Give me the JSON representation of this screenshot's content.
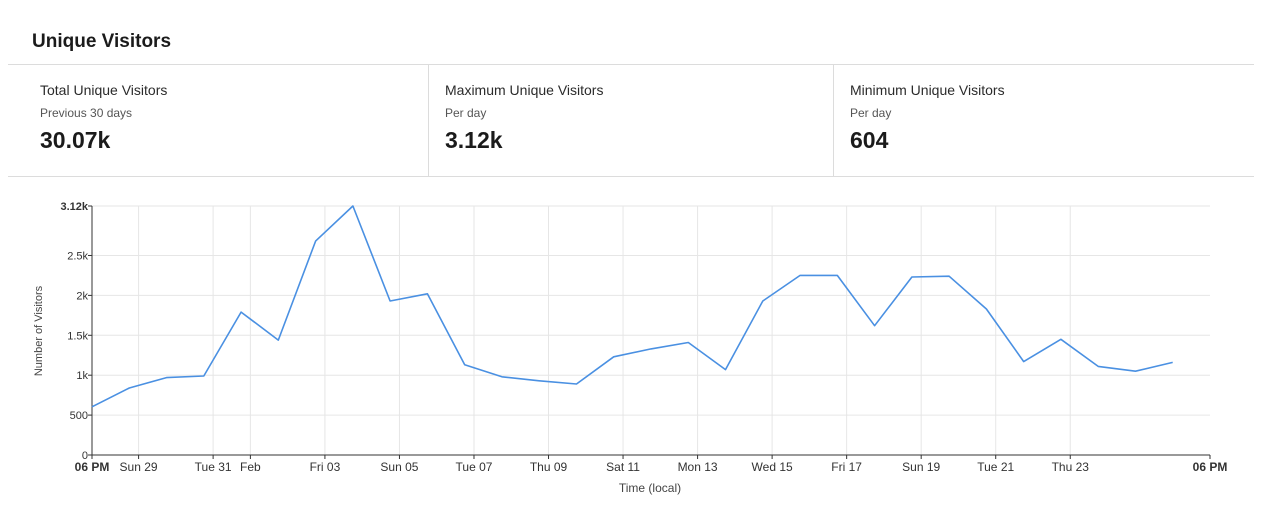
{
  "page": {
    "title": "Unique Visitors"
  },
  "stats": [
    {
      "label": "Total Unique Visitors",
      "sublabel": "Previous 30 days",
      "value": "30.07k"
    },
    {
      "label": "Maximum Unique Visitors",
      "sublabel": "Per day",
      "value": "3.12k"
    },
    {
      "label": "Minimum Unique Visitors",
      "sublabel": "Per day",
      "value": "604"
    }
  ],
  "colors": {
    "line": "#4a90e2",
    "grid": "#e6e6e6",
    "axis": "#333333"
  },
  "chart_data": {
    "type": "line",
    "xlabel": "Time (local)",
    "ylabel": "Number of Visitors",
    "ylim": [
      0,
      3120
    ],
    "grid": true,
    "legend": "none",
    "y_ticks": [
      {
        "value": 0,
        "label": "0"
      },
      {
        "value": 500,
        "label": "500"
      },
      {
        "value": 1000,
        "label": "1k"
      },
      {
        "value": 1500,
        "label": "1.5k"
      },
      {
        "value": 2000,
        "label": "2k"
      },
      {
        "value": 2500,
        "label": "2.5k"
      },
      {
        "value": 3120,
        "label": "3.12k",
        "bold": true
      }
    ],
    "x_range": [
      "2025-12-27T18:00",
      "2026-01-26T18:00"
    ],
    "x_ticks": [
      {
        "x": "2025-12-27T18:00",
        "label": "06 PM",
        "bold": true
      },
      {
        "x": "2025-12-29T00:00",
        "label": "Sun 29"
      },
      {
        "x": "2025-12-31T00:00",
        "label": "Tue 31"
      },
      {
        "x": "2026-01-01T00:00",
        "label": "Feb"
      },
      {
        "x": "2026-01-03T00:00",
        "label": "Fri 03"
      },
      {
        "x": "2026-01-05T00:00",
        "label": "Sun 05"
      },
      {
        "x": "2026-01-07T00:00",
        "label": "Tue 07"
      },
      {
        "x": "2026-01-09T00:00",
        "label": "Thu 09"
      },
      {
        "x": "2026-01-11T00:00",
        "label": "Sat 11"
      },
      {
        "x": "2026-01-13T00:00",
        "label": "Mon 13"
      },
      {
        "x": "2026-01-15T00:00",
        "label": "Wed 15"
      },
      {
        "x": "2026-01-17T00:00",
        "label": "Fri 17"
      },
      {
        "x": "2026-01-19T00:00",
        "label": "Sun 19"
      },
      {
        "x": "2026-01-21T00:00",
        "label": "Tue 21"
      },
      {
        "x": "2026-01-23T00:00",
        "label": "Thu 23"
      },
      {
        "x": "2026-01-26T18:00",
        "label": "06 PM",
        "bold": true
      }
    ],
    "series": [
      {
        "points": [
          {
            "x": "2025-12-27T18:00",
            "y": 604
          },
          {
            "x": "2025-12-28T18:00",
            "y": 840
          },
          {
            "x": "2025-12-29T18:00",
            "y": 970
          },
          {
            "x": "2025-12-30T18:00",
            "y": 990
          },
          {
            "x": "2025-12-31T18:00",
            "y": 1790
          },
          {
            "x": "2026-01-01T18:00",
            "y": 1440
          },
          {
            "x": "2026-01-02T18:00",
            "y": 2680
          },
          {
            "x": "2026-01-03T18:00",
            "y": 3120
          },
          {
            "x": "2026-01-04T18:00",
            "y": 1930
          },
          {
            "x": "2026-01-05T18:00",
            "y": 2020
          },
          {
            "x": "2026-01-06T18:00",
            "y": 1130
          },
          {
            "x": "2026-01-07T18:00",
            "y": 980
          },
          {
            "x": "2026-01-08T18:00",
            "y": 930
          },
          {
            "x": "2026-01-09T18:00",
            "y": 890
          },
          {
            "x": "2026-01-10T18:00",
            "y": 1230
          },
          {
            "x": "2026-01-11T18:00",
            "y": 1330
          },
          {
            "x": "2026-01-12T18:00",
            "y": 1410
          },
          {
            "x": "2026-01-13T18:00",
            "y": 1070
          },
          {
            "x": "2026-01-14T18:00",
            "y": 1930
          },
          {
            "x": "2026-01-15T18:00",
            "y": 2250
          },
          {
            "x": "2026-01-16T18:00",
            "y": 2250
          },
          {
            "x": "2026-01-17T18:00",
            "y": 1620
          },
          {
            "x": "2026-01-18T18:00",
            "y": 2230
          },
          {
            "x": "2026-01-19T18:00",
            "y": 2240
          },
          {
            "x": "2026-01-20T18:00",
            "y": 1830
          },
          {
            "x": "2026-01-21T18:00",
            "y": 1170
          },
          {
            "x": "2026-01-22T18:00",
            "y": 1450
          },
          {
            "x": "2026-01-23T18:00",
            "y": 1110
          },
          {
            "x": "2026-01-24T18:00",
            "y": 1050
          },
          {
            "x": "2026-01-25T18:00",
            "y": 1160
          }
        ]
      }
    ]
  }
}
